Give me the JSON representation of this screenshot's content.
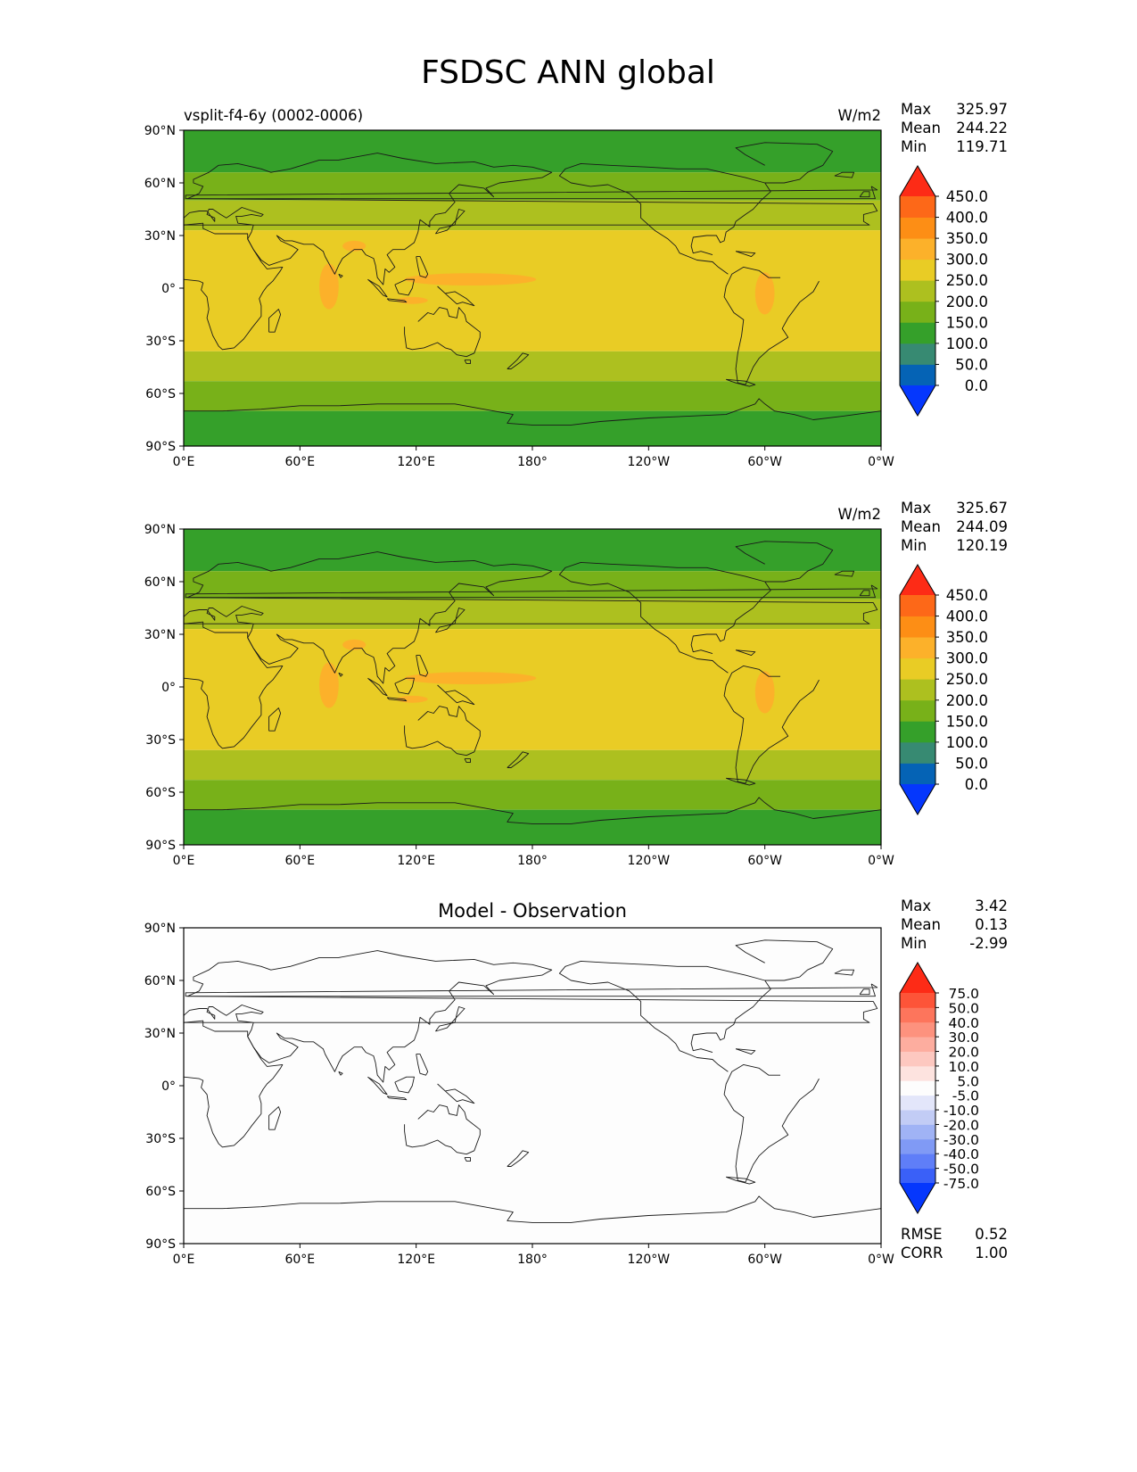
{
  "title": "FSDSC ANN global",
  "colors": {
    "cbar_main": [
      "#0537fd",
      "#0563b5",
      "#378a72",
      "#35a02a",
      "#78b119",
      "#adc01f",
      "#e9cc25",
      "#fcb12a",
      "#fd8e15",
      "#fd6818",
      "#fd2b16"
    ],
    "cbar_diff": [
      "#0537fd",
      "#3a60f8",
      "#5f7ef8",
      "#809af5",
      "#a0b3f5",
      "#c2ccf5",
      "#e3e6fa",
      "#fdfdfd",
      "#fde3df",
      "#fdc8c0",
      "#fdad9f",
      "#fd927e",
      "#fd755c",
      "#fd5438",
      "#fd2b16"
    ],
    "band_main": {
      "high": "#35a02a",
      "mid": "#78b119",
      "low": "#adc01f",
      "trop": "#e9cc25",
      "hot": "#fcb12a"
    },
    "coast": "#1a1a1a",
    "diff_background": "#fdfdfd"
  },
  "chart_data": [
    {
      "type": "heatmap",
      "name": "test",
      "title_left": "vsplit-f4-6y (0002-0006)",
      "title_center": "",
      "units": "W/m2",
      "stats": [
        {
          "label": "Max",
          "value": "325.97"
        },
        {
          "label": "Mean",
          "value": "244.22"
        },
        {
          "label": "Min",
          "value": "119.71"
        }
      ],
      "cbar_ticks": [
        "0.0",
        "50.0",
        "100.0",
        "150.0",
        "200.0",
        "250.0",
        "300.0",
        "350.0",
        "400.0",
        "450.0"
      ],
      "cbar_levels": [
        0,
        50,
        100,
        150,
        200,
        250,
        300,
        350,
        400,
        450
      ],
      "xticks": [
        "0°E",
        "60°E",
        "120°E",
        "180°",
        "120°W",
        "60°W",
        "0°W"
      ],
      "yticks": [
        "90°N",
        "60°N",
        "30°N",
        "0°",
        "30°S",
        "60°S",
        "90°S"
      ],
      "xlim": [
        0,
        360
      ],
      "ylim": [
        -90,
        90
      ],
      "lat_bands": [
        {
          "lat_max": 90,
          "lat_min": 66,
          "value": 125
        },
        {
          "lat_max": 66,
          "lat_min": 50,
          "value": 175
        },
        {
          "lat_max": 50,
          "lat_min": 33,
          "value": 225
        },
        {
          "lat_max": 33,
          "lat_min": -36,
          "value": 275
        },
        {
          "lat_max": -36,
          "lat_min": -53,
          "value": 225
        },
        {
          "lat_max": -53,
          "lat_min": -70,
          "value": 175
        },
        {
          "lat_max": -70,
          "lat_min": -90,
          "value": 125
        }
      ]
    },
    {
      "type": "heatmap",
      "name": "reference",
      "title_left": "",
      "title_center": "",
      "units": "W/m2",
      "stats": [
        {
          "label": "Max",
          "value": "325.67"
        },
        {
          "label": "Mean",
          "value": "244.09"
        },
        {
          "label": "Min",
          "value": "120.19"
        }
      ],
      "cbar_ticks": [
        "0.0",
        "50.0",
        "100.0",
        "150.0",
        "200.0",
        "250.0",
        "300.0",
        "350.0",
        "400.0",
        "450.0"
      ],
      "cbar_levels": [
        0,
        50,
        100,
        150,
        200,
        250,
        300,
        350,
        400,
        450
      ],
      "xticks": [
        "0°E",
        "60°E",
        "120°E",
        "180°",
        "120°W",
        "60°W",
        "0°W"
      ],
      "yticks": [
        "90°N",
        "60°N",
        "30°N",
        "0°",
        "30°S",
        "60°S",
        "90°S"
      ],
      "xlim": [
        0,
        360
      ],
      "ylim": [
        -90,
        90
      ],
      "lat_bands": [
        {
          "lat_max": 90,
          "lat_min": 66,
          "value": 125
        },
        {
          "lat_max": 66,
          "lat_min": 50,
          "value": 175
        },
        {
          "lat_max": 50,
          "lat_min": 33,
          "value": 225
        },
        {
          "lat_max": 33,
          "lat_min": -36,
          "value": 275
        },
        {
          "lat_max": -36,
          "lat_min": -53,
          "value": 225
        },
        {
          "lat_max": -53,
          "lat_min": -70,
          "value": 175
        },
        {
          "lat_max": -70,
          "lat_min": -90,
          "value": 125
        }
      ]
    },
    {
      "type": "heatmap",
      "name": "difference",
      "title_left": "",
      "title_center": "Model - Observation",
      "units": "",
      "stats": [
        {
          "label": "Max",
          "value": "3.42"
        },
        {
          "label": "Mean",
          "value": "0.13"
        },
        {
          "label": "Min",
          "value": "-2.99"
        }
      ],
      "cbar_ticks": [
        "-75.0",
        "-50.0",
        "-40.0",
        "-30.0",
        "-20.0",
        "-10.0",
        "-5.0",
        "5.0",
        "10.0",
        "20.0",
        "30.0",
        "40.0",
        "50.0",
        "75.0"
      ],
      "cbar_levels": [
        -75,
        -50,
        -40,
        -30,
        -20,
        -10,
        -5,
        5,
        10,
        20,
        30,
        40,
        50,
        75
      ],
      "xticks": [
        "0°E",
        "60°E",
        "120°E",
        "180°",
        "120°W",
        "60°W",
        "0°W"
      ],
      "yticks": [
        "90°N",
        "60°N",
        "30°N",
        "0°",
        "30°S",
        "60°S",
        "90°S"
      ],
      "xlim": [
        0,
        360
      ],
      "ylim": [
        -90,
        90
      ],
      "metrics": [
        {
          "label": "RMSE",
          "value": "0.52"
        },
        {
          "label": "CORR",
          "value": "1.00"
        }
      ]
    }
  ]
}
